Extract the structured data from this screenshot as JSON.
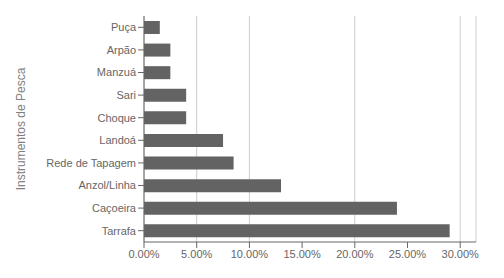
{
  "chart_data": {
    "type": "bar",
    "orientation": "horizontal",
    "categories": [
      "Tarrafa",
      "Caçoeira",
      "Anzol/Linha",
      "Rede de Tapagem",
      "Landoá",
      "Choque",
      "Sari",
      "Manzuá",
      "Arpão",
      "Puça"
    ],
    "values": [
      0.29,
      0.24,
      0.13,
      0.085,
      0.075,
      0.04,
      0.04,
      0.025,
      0.025,
      0.015
    ],
    "color": "#636363",
    "ylabel": "Instrumentos de Pesca",
    "xlim": [
      0,
      0.315
    ],
    "xticks": [
      {
        "value": 0.0,
        "label": "0.00%"
      },
      {
        "value": 0.05,
        "label": "5.00%"
      },
      {
        "value": 0.1,
        "label": "10.00%"
      },
      {
        "value": 0.15,
        "label": "15.00%"
      },
      {
        "value": 0.2,
        "label": "20.00%"
      },
      {
        "value": 0.25,
        "label": "25.00%"
      },
      {
        "value": 0.3,
        "label": "30.00%"
      }
    ],
    "grid": true
  }
}
